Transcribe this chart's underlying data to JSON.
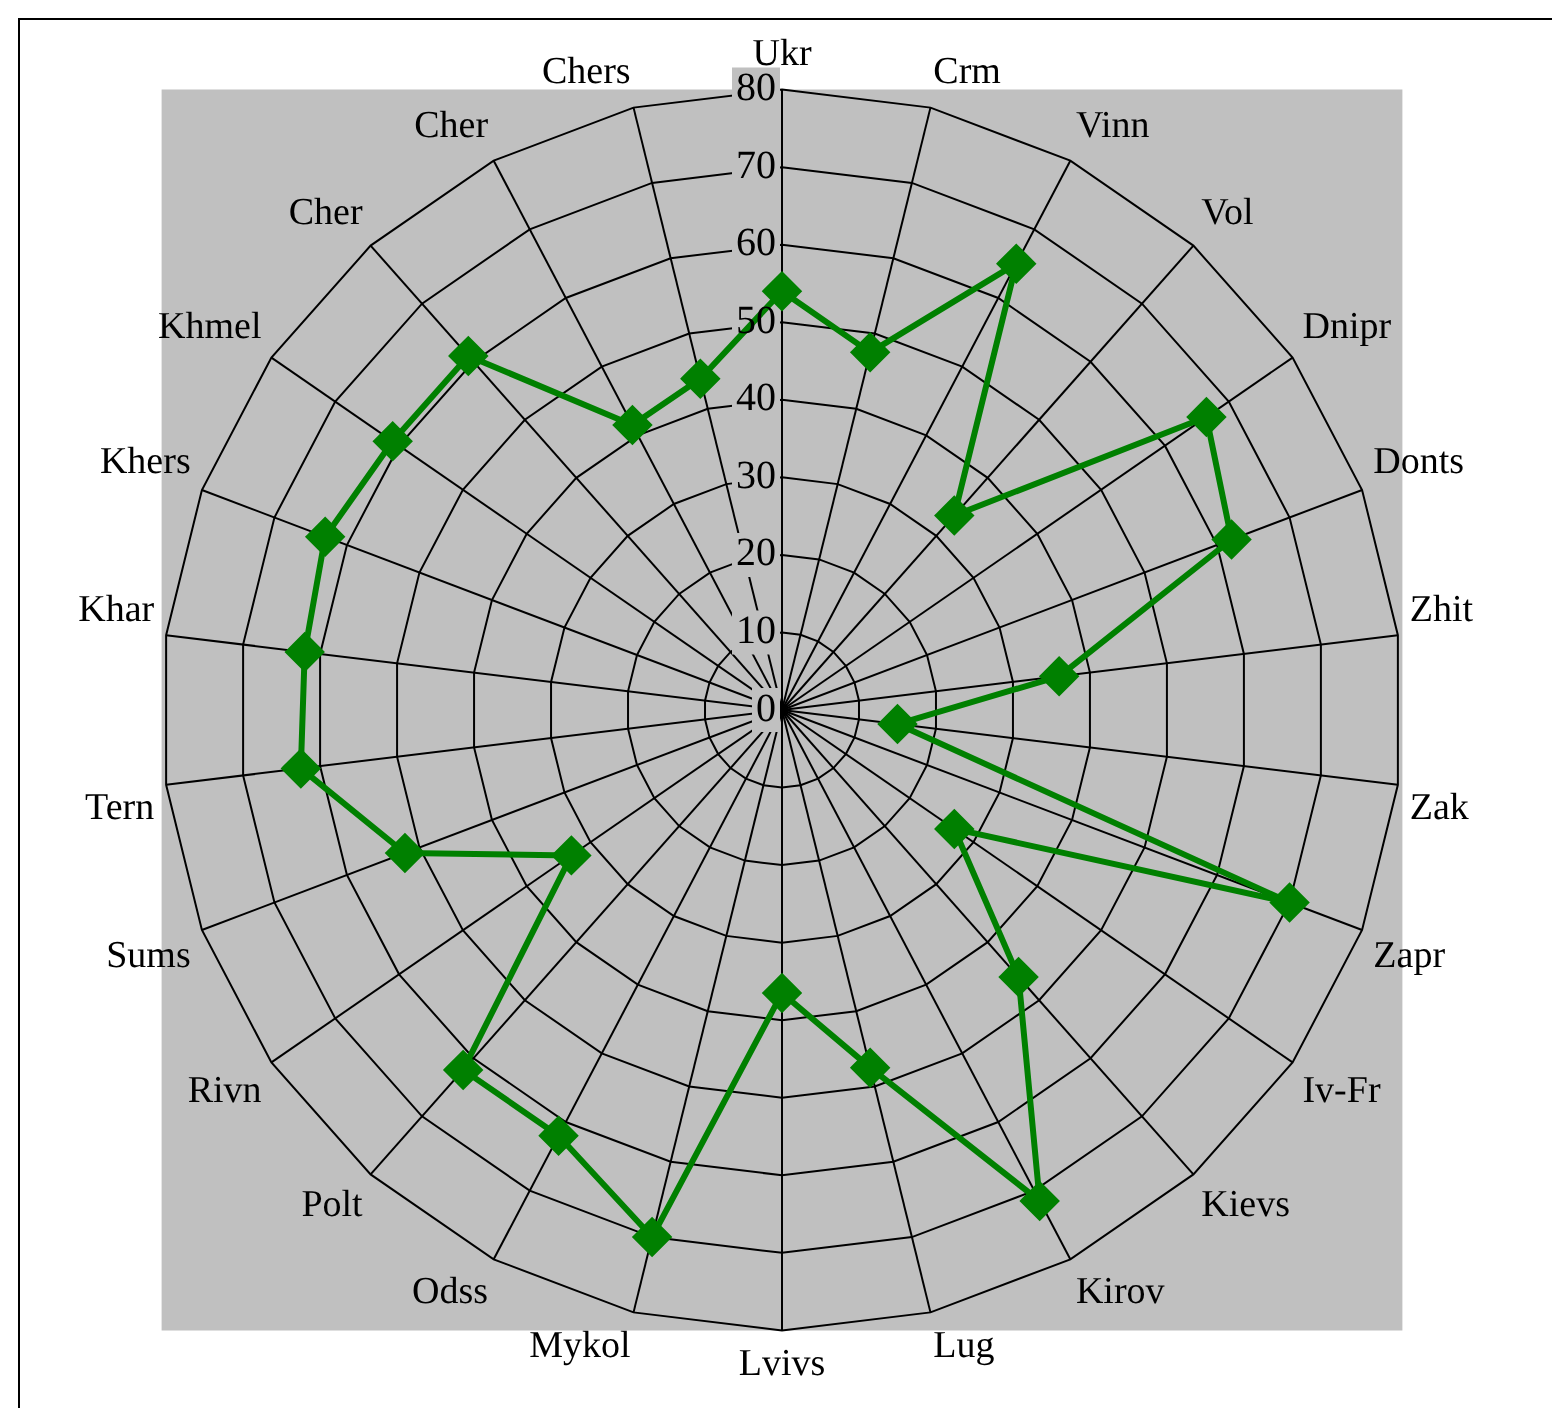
{
  "chart_data": {
    "type": "radar",
    "categories": [
      "Ukr",
      "Crm",
      "Vinn",
      "Vol",
      "Dnipr",
      "Donts",
      "Zhit",
      "Zak",
      "Zapr",
      "Iv-Fr",
      "Kievs",
      "Kirov",
      "Lug",
      "Lvivs",
      "Mykol",
      "Odss",
      "Polt",
      "Rivn",
      "Sums",
      "Tern",
      "Khar",
      "Khers",
      "Khmel",
      "Cher",
      "Cher",
      "Chers"
    ],
    "series": [
      {
        "color": "#008000",
        "values": [
          54,
          47.5,
          65,
          33.5,
          66.5,
          62,
          36,
          15,
          70,
          27,
          46,
          71.5,
          47.5,
          36.5,
          70,
          62,
          62,
          33,
          52,
          62.5,
          62,
          63,
          61,
          61,
          41.5,
          44
        ]
      }
    ],
    "ylim": [
      0,
      80
    ],
    "yticks": [
      0,
      10,
      20,
      30,
      40,
      50,
      60,
      70,
      80
    ],
    "grid": true,
    "legend": false,
    "marker": "diamond",
    "line_style": "solid"
  }
}
